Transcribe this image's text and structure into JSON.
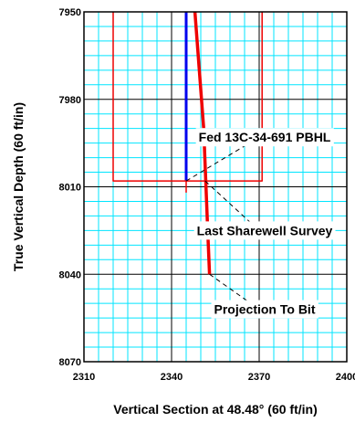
{
  "chart_data": {
    "type": "line",
    "xlabel": "Vertical Section at 48.48° (60 ft/in)",
    "ylabel": "True Vertical Depth (60 ft/in)",
    "xlim": [
      2310,
      2400
    ],
    "ylim": [
      7950,
      8070
    ],
    "y_inverted": true,
    "x_ticks": [
      "2310",
      "2340",
      "2370",
      "2400"
    ],
    "y_ticks": [
      "7950",
      "7980",
      "8010",
      "8040",
      "8070"
    ],
    "grid": true,
    "grid_minor_step": 5,
    "grid_major_step": 30,
    "colors": {
      "minor_grid": "#00e5ff",
      "major_grid": "#000000",
      "plan": "#0000ee",
      "survey": "#ee0000",
      "target": "#ee0000"
    },
    "series": [
      {
        "role": "plan",
        "color": "#0000ee",
        "x": [
          2345,
          2345
        ],
        "y": [
          7950,
          8008
        ]
      },
      {
        "role": "survey",
        "color": "#ee0000",
        "x": [
          2348,
          2351,
          2352.5,
          2353
        ],
        "y": [
          7950,
          7990,
          8028,
          8040
        ]
      },
      {
        "role": "target",
        "color": "#ee0000",
        "x": [
          2320,
          2320,
          2371,
          2371
        ],
        "y": [
          7950,
          8008,
          8008,
          7950
        ]
      },
      {
        "role": "target_mark",
        "color": "#ee0000",
        "x": [
          2345,
          2345
        ],
        "y": [
          8008,
          8012
        ]
      }
    ],
    "annotations": [
      {
        "text": "Fed 13C-34-691 PBHL",
        "point": [
          2345,
          8008
        ],
        "anchor": [
          2370,
          7993
        ]
      },
      {
        "text": "Last Sharewell Survey",
        "point": [
          2351.5,
          8008
        ],
        "anchor": [
          2370,
          8025
        ]
      },
      {
        "text": "Projection To Bit",
        "point": [
          2353,
          8040
        ],
        "anchor": [
          2370,
          8052
        ]
      }
    ]
  }
}
